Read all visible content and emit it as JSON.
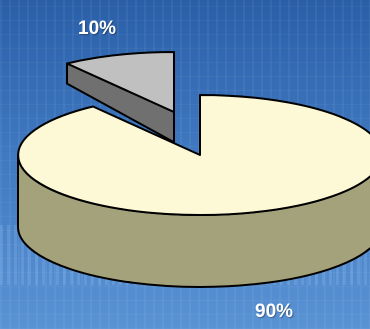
{
  "chart_data": {
    "type": "pie",
    "title": "",
    "categories": [
      "",
      ""
    ],
    "values": [
      90,
      10
    ],
    "labels": [
      "90%",
      "10%"
    ],
    "colors": {
      "large_top": "#fdf9d6",
      "large_side": "#a3a27a",
      "small_top": "#c0c0c0",
      "small_side": "#707070",
      "outline": "#000000"
    },
    "style": "3d-exploded"
  }
}
